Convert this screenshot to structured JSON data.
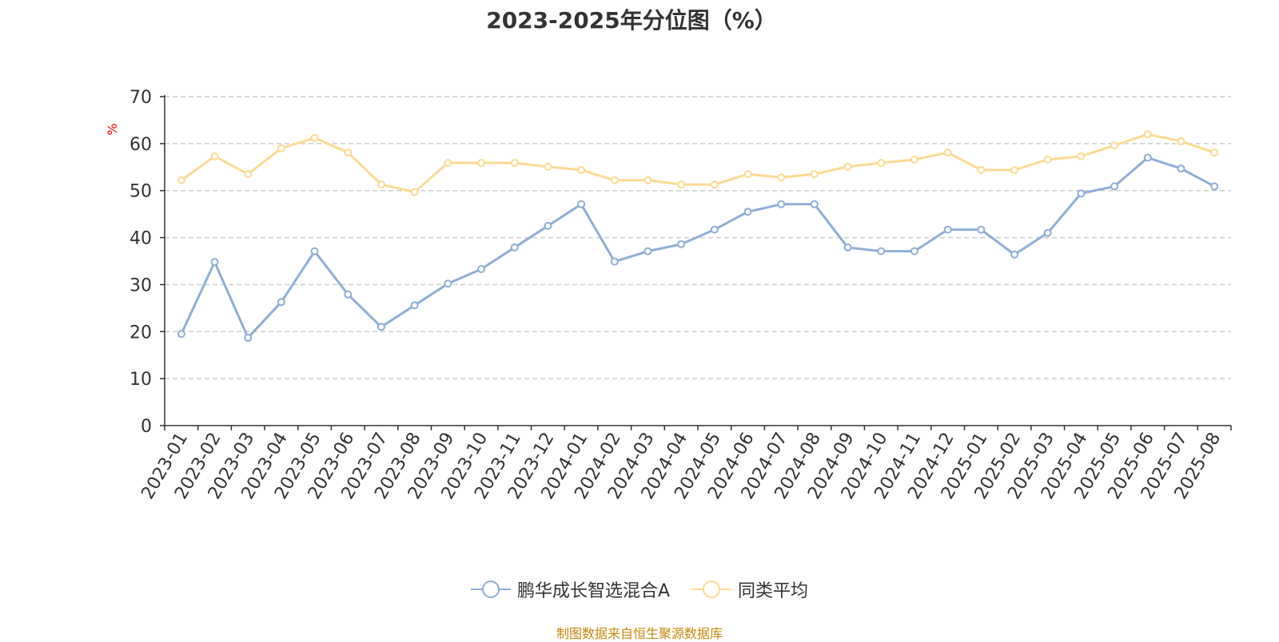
{
  "chart_data": {
    "type": "line",
    "title": "2023-2025年分位图（%）",
    "ylabel": "%",
    "ylim": [
      0,
      70
    ],
    "yticks": [
      0,
      10,
      20,
      30,
      40,
      50,
      60,
      70
    ],
    "grid": true,
    "legend_position": "bottom",
    "categories": [
      "2023-01",
      "2023-02",
      "2023-03",
      "2023-04",
      "2023-05",
      "2023-06",
      "2023-07",
      "2023-08",
      "2023-09",
      "2023-10",
      "2023-11",
      "2023-12",
      "2024-01",
      "2024-02",
      "2024-03",
      "2024-04",
      "2024-05",
      "2024-06",
      "2024-07",
      "2024-08",
      "2024-09",
      "2024-10",
      "2024-11",
      "2024-12",
      "2025-01",
      "2025-02",
      "2025-03",
      "2025-04",
      "2025-05",
      "2025-06",
      "2025-07",
      "2025-08"
    ],
    "series": [
      {
        "name": "鹏华成长智选混合A",
        "color": "#8eaed8",
        "values": [
          19.5,
          34.8,
          18.7,
          26.3,
          37.1,
          27.9,
          21.0,
          25.6,
          30.2,
          33.3,
          37.9,
          42.5,
          47.1,
          34.9,
          37.1,
          38.6,
          41.7,
          45.5,
          47.1,
          47.1,
          37.9,
          37.1,
          37.1,
          41.7,
          41.7,
          36.4,
          41.0,
          49.4,
          50.9,
          57.0,
          54.7,
          50.9
        ]
      },
      {
        "name": "同类平均",
        "color": "#fcd992",
        "values": [
          52.2,
          57.3,
          53.5,
          59.0,
          61.2,
          58.1,
          51.3,
          49.7,
          55.9,
          55.9,
          55.9,
          55.1,
          54.4,
          52.2,
          52.2,
          51.3,
          51.3,
          53.5,
          52.8,
          53.5,
          55.1,
          55.9,
          56.6,
          58.1,
          54.4,
          54.4,
          56.6,
          57.3,
          59.6,
          62.0,
          60.5,
          58.1
        ]
      }
    ]
  },
  "footer": {
    "source": "制图数据来自恒生聚源数据库"
  }
}
